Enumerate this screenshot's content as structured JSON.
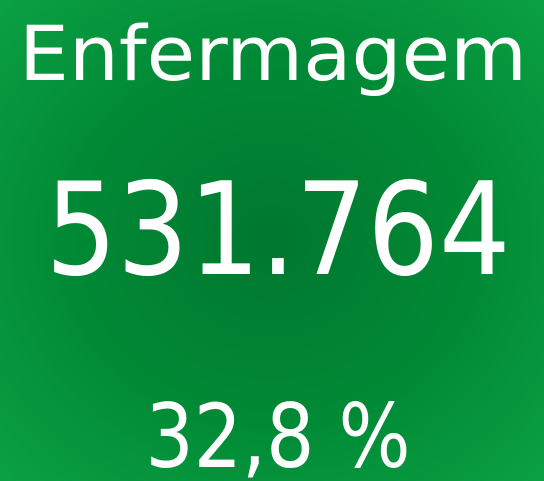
{
  "title": "Enfermagem",
  "value": "531.764",
  "share": "32,8 %"
}
